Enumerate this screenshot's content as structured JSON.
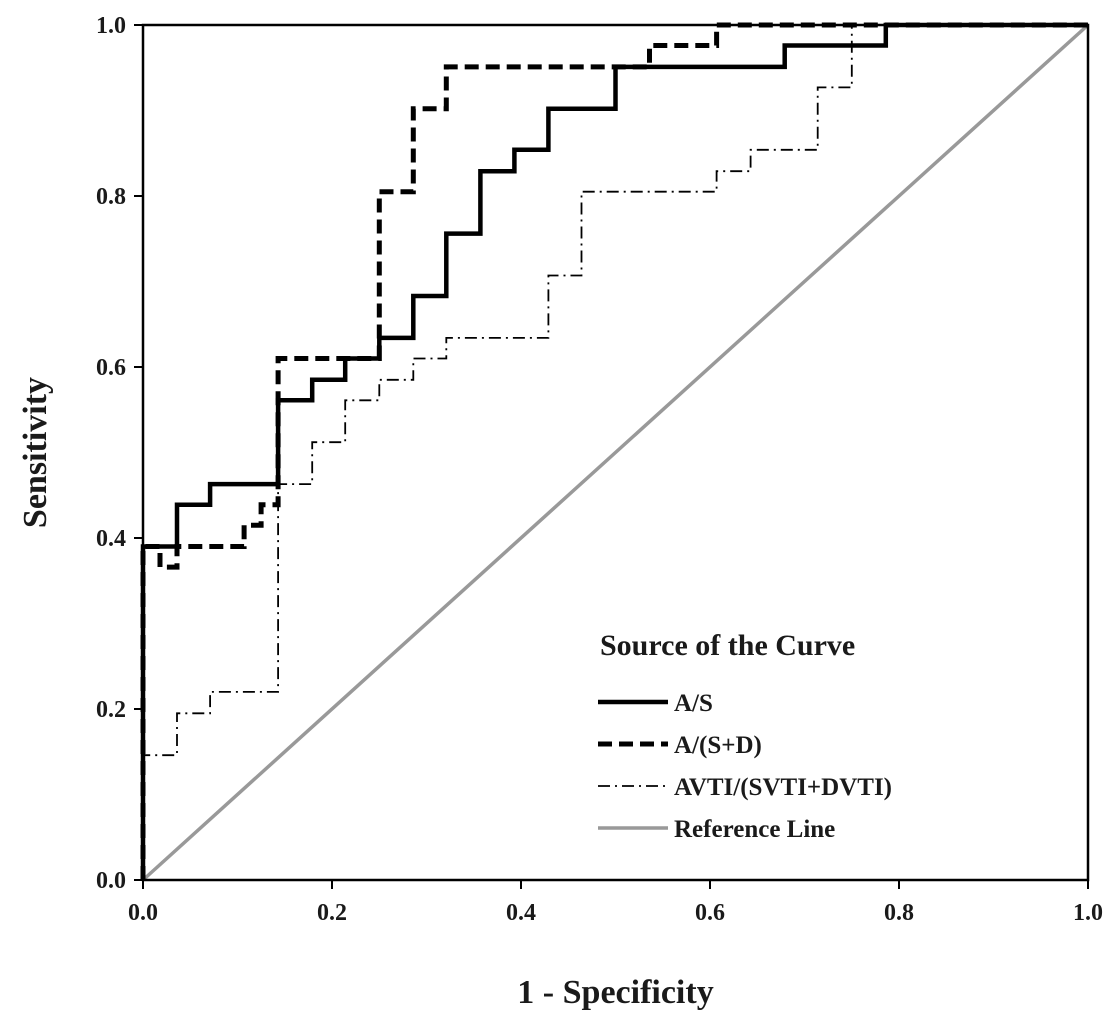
{
  "chart_data": {
    "type": "line",
    "title": "",
    "xlabel": "1 - Specificity",
    "ylabel": "Sensitivity",
    "xlim": [
      0.0,
      1.0
    ],
    "ylim": [
      0.0,
      1.0
    ],
    "x_ticks": [
      "0.0",
      "0.2",
      "0.4",
      "0.6",
      "0.8",
      "1.0"
    ],
    "y_ticks": [
      "0.0",
      "0.2",
      "0.4",
      "0.6",
      "0.8",
      "1.0"
    ],
    "x_tick_values": [
      0.0,
      0.2,
      0.4,
      0.6,
      0.8,
      1.0
    ],
    "y_tick_values": [
      0.0,
      0.2,
      0.4,
      0.6,
      0.8,
      1.0
    ],
    "grid": false,
    "legend": {
      "title": "Source of the Curve",
      "placement": "bottom-right"
    },
    "series": [
      {
        "name": "A/S",
        "color": "#000000",
        "style": "solid-thick",
        "points": [
          [
            0.0,
            0.0
          ],
          [
            0.0,
            0.39
          ],
          [
            0.036,
            0.39
          ],
          [
            0.036,
            0.439
          ],
          [
            0.071,
            0.439
          ],
          [
            0.071,
            0.463
          ],
          [
            0.143,
            0.463
          ],
          [
            0.143,
            0.561
          ],
          [
            0.179,
            0.561
          ],
          [
            0.179,
            0.585
          ],
          [
            0.214,
            0.585
          ],
          [
            0.214,
            0.61
          ],
          [
            0.25,
            0.61
          ],
          [
            0.25,
            0.634
          ],
          [
            0.286,
            0.634
          ],
          [
            0.286,
            0.683
          ],
          [
            0.321,
            0.683
          ],
          [
            0.321,
            0.756
          ],
          [
            0.357,
            0.756
          ],
          [
            0.357,
            0.829
          ],
          [
            0.393,
            0.829
          ],
          [
            0.393,
            0.854
          ],
          [
            0.429,
            0.854
          ],
          [
            0.429,
            0.902
          ],
          [
            0.5,
            0.902
          ],
          [
            0.5,
            0.951
          ],
          [
            0.679,
            0.951
          ],
          [
            0.679,
            0.976
          ],
          [
            0.786,
            0.976
          ],
          [
            0.786,
            1.0
          ],
          [
            1.0,
            1.0
          ]
        ]
      },
      {
        "name": "A/(S+D)",
        "color": "#000000",
        "style": "dashed-thick",
        "points": [
          [
            0.0,
            0.0
          ],
          [
            0.0,
            0.39
          ],
          [
            0.018,
            0.39
          ],
          [
            0.018,
            0.366
          ],
          [
            0.036,
            0.366
          ],
          [
            0.036,
            0.39
          ],
          [
            0.107,
            0.39
          ],
          [
            0.107,
            0.415
          ],
          [
            0.125,
            0.415
          ],
          [
            0.125,
            0.439
          ],
          [
            0.143,
            0.439
          ],
          [
            0.143,
            0.61
          ],
          [
            0.25,
            0.61
          ],
          [
            0.25,
            0.805
          ],
          [
            0.286,
            0.805
          ],
          [
            0.286,
            0.902
          ],
          [
            0.321,
            0.902
          ],
          [
            0.321,
            0.951
          ],
          [
            0.536,
            0.951
          ],
          [
            0.536,
            0.976
          ],
          [
            0.607,
            0.976
          ],
          [
            0.607,
            1.0
          ],
          [
            1.0,
            1.0
          ]
        ]
      },
      {
        "name": "AVTI/(SVTI+DVTI)",
        "color": "#000000",
        "style": "dashdot-thin",
        "points": [
          [
            0.0,
            0.0
          ],
          [
            0.0,
            0.146
          ],
          [
            0.036,
            0.146
          ],
          [
            0.036,
            0.195
          ],
          [
            0.071,
            0.195
          ],
          [
            0.071,
            0.22
          ],
          [
            0.143,
            0.22
          ],
          [
            0.143,
            0.463
          ],
          [
            0.179,
            0.463
          ],
          [
            0.179,
            0.512
          ],
          [
            0.214,
            0.512
          ],
          [
            0.214,
            0.561
          ],
          [
            0.25,
            0.561
          ],
          [
            0.25,
            0.585
          ],
          [
            0.286,
            0.585
          ],
          [
            0.286,
            0.61
          ],
          [
            0.321,
            0.61
          ],
          [
            0.321,
            0.634
          ],
          [
            0.429,
            0.634
          ],
          [
            0.429,
            0.707
          ],
          [
            0.464,
            0.707
          ],
          [
            0.464,
            0.805
          ],
          [
            0.607,
            0.805
          ],
          [
            0.607,
            0.829
          ],
          [
            0.643,
            0.829
          ],
          [
            0.643,
            0.854
          ],
          [
            0.714,
            0.854
          ],
          [
            0.714,
            0.927
          ],
          [
            0.75,
            0.927
          ],
          [
            0.75,
            1.0
          ],
          [
            1.0,
            1.0
          ]
        ]
      },
      {
        "name": "Reference Line",
        "color": "#999999",
        "style": "solid-gray",
        "points": [
          [
            0.0,
            0.0
          ],
          [
            1.0,
            1.0
          ]
        ]
      }
    ]
  }
}
